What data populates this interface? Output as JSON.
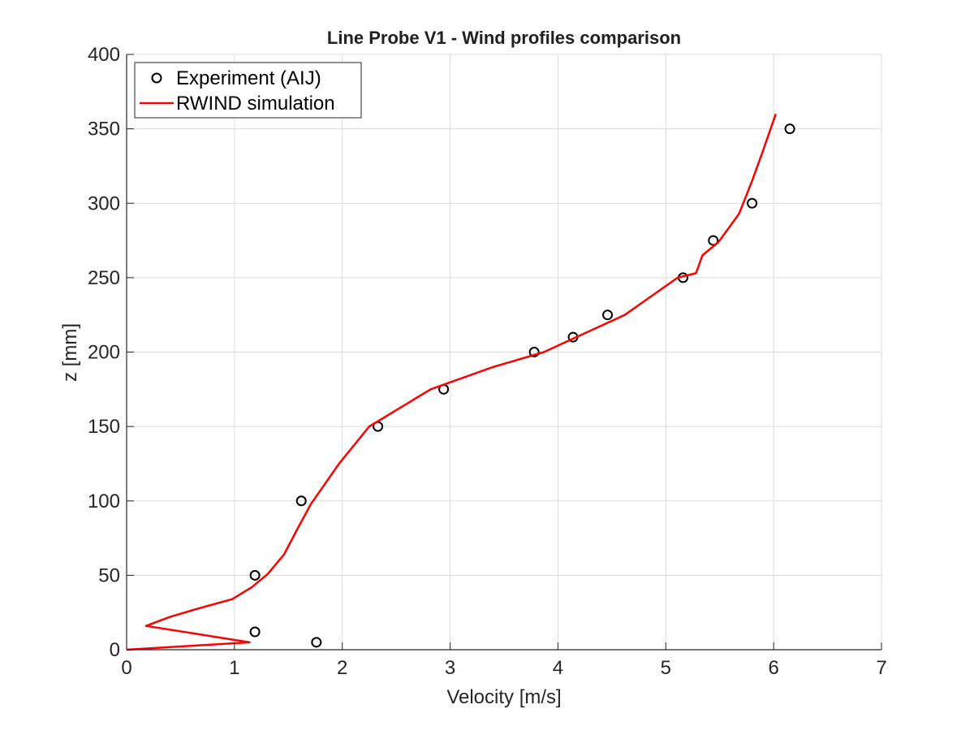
{
  "chart_data": {
    "type": "line",
    "title": "Line Probe V1 - Wind profiles comparison",
    "xlabel": "Velocity [m/s]",
    "ylabel": "z [mm]",
    "xlim": [
      0,
      7
    ],
    "ylim": [
      0,
      400
    ],
    "xticks": [
      0,
      1,
      2,
      3,
      4,
      5,
      6,
      7
    ],
    "yticks": [
      0,
      50,
      100,
      150,
      200,
      250,
      300,
      350,
      400
    ],
    "grid": true,
    "legend_position": "top-left",
    "series": [
      {
        "name": "Experiment (AIJ)",
        "kind": "scatter",
        "marker": "open-circle",
        "color": "#000000",
        "x": [
          1.76,
          1.19,
          1.19,
          1.62,
          2.33,
          2.94,
          3.78,
          4.14,
          4.46,
          5.16,
          5.44,
          5.8,
          6.15
        ],
        "y": [
          5,
          12,
          50,
          100,
          150,
          175,
          200,
          210,
          225,
          250,
          275,
          300,
          350
        ]
      },
      {
        "name": "RWIND simulation",
        "kind": "line",
        "color": "#ff0000",
        "x": [
          0,
          1.14,
          0.18,
          0.4,
          0.63,
          0.98,
          1.16,
          1.31,
          1.46,
          1.59,
          1.71,
          1.97,
          2.25,
          2.82,
          3.4,
          3.87,
          4.17,
          4.62,
          5.11,
          5.28,
          5.34,
          5.49,
          5.68,
          5.8,
          5.9,
          6.02
        ],
        "y": [
          0,
          5,
          16,
          22,
          27,
          34,
          42,
          51,
          64,
          82,
          98,
          125,
          150,
          175,
          190,
          200,
          210,
          225,
          250,
          253,
          265,
          274,
          293,
          315,
          335,
          360
        ]
      }
    ]
  }
}
